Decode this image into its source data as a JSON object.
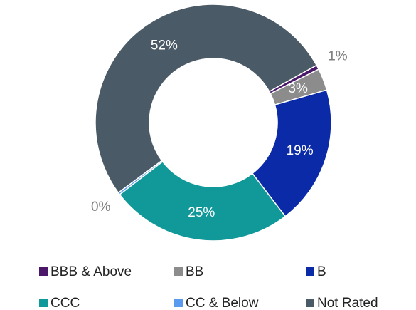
{
  "chart_data": {
    "type": "donut",
    "categories": [
      "BBB & Above",
      "BB",
      "B",
      "CCC",
      "CC & Below",
      "Not Rated"
    ],
    "values": [
      0.6,
      3,
      19,
      25,
      0.3,
      52
    ],
    "value_labels": [
      "1%",
      "3%",
      "19%",
      "25%",
      "0%",
      "52%"
    ],
    "colors": [
      "#4b1869",
      "#8c8c8c",
      "#0a2aa8",
      "#11999a",
      "#5b9bef",
      "#4a5a66"
    ],
    "legend": "bottom"
  }
}
